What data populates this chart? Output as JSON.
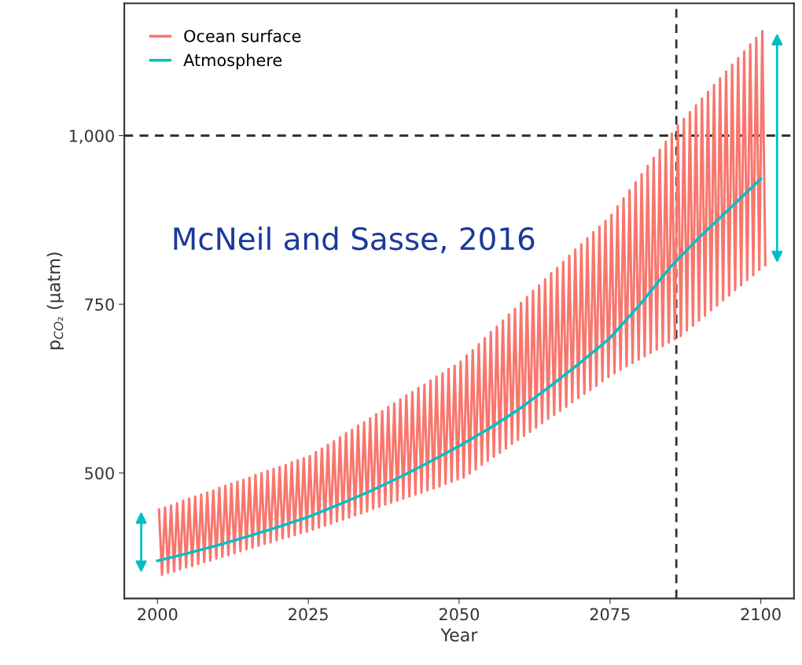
{
  "chart_data": {
    "type": "line",
    "xlabel": "Year",
    "ylabel": "p$_{CO₂}$ (µatm)",
    "xlim": [
      1994.5,
      2105.5
    ],
    "ylim": [
      314,
      1196
    ],
    "xticks": [
      2000,
      2025,
      2050,
      2075,
      2100
    ],
    "yticks": [
      500,
      750,
      {
        "value": 1000,
        "label": "1,000"
      }
    ],
    "grid": false,
    "legend": "top left",
    "line_style": "solid",
    "marker": "none",
    "ref_lines": [
      {
        "axis": "y",
        "value": 1000,
        "label": null,
        "color": "#333333",
        "line_style": "dashed"
      },
      {
        "axis": "x",
        "value": 2086,
        "label": null,
        "color": "#333333",
        "line_style": "dashed"
      }
    ],
    "annotations": [
      "McNeil and Sasse, 2016"
    ],
    "series": [
      {
        "name": "Ocean surface",
        "color": "#f8766d",
        "x": [
          2000.25,
          2000.75,
          2001.25,
          2001.75,
          2002.25,
          2002.75,
          2003.25,
          2003.75,
          2004.25,
          2004.75,
          2005.25,
          2005.75,
          2006.25,
          2006.75,
          2007.25,
          2007.75,
          2008.25,
          2008.75,
          2009.25,
          2009.75,
          2010.25,
          2010.75,
          2011.25,
          2011.75,
          2012.25,
          2012.75,
          2013.25,
          2013.75,
          2014.25,
          2014.75,
          2015.25,
          2015.75,
          2016.25,
          2016.75,
          2017.25,
          2017.75,
          2018.25,
          2018.75,
          2019.25,
          2019.75,
          2020.25,
          2020.75,
          2021.25,
          2021.75,
          2022.25,
          2022.75,
          2023.25,
          2023.75,
          2024.25,
          2024.75,
          2025.25,
          2025.75,
          2026.25,
          2026.75,
          2027.25,
          2027.75,
          2028.25,
          2028.75,
          2029.25,
          2029.75,
          2030.25,
          2030.75,
          2031.25,
          2031.75,
          2032.25,
          2032.75,
          2033.25,
          2033.75,
          2034.25,
          2034.75,
          2035.25,
          2035.75,
          2036.25,
          2036.75,
          2037.25,
          2037.75,
          2038.25,
          2038.75,
          2039.25,
          2039.75,
          2040.25,
          2040.75,
          2041.25,
          2041.75,
          2042.25,
          2042.75,
          2043.25,
          2043.75,
          2044.25,
          2044.75,
          2045.25,
          2045.75,
          2046.25,
          2046.75,
          2047.25,
          2047.75,
          2048.25,
          2048.75,
          2049.25,
          2049.75,
          2050.25,
          2050.75,
          2051.25,
          2051.75,
          2052.25,
          2052.75,
          2053.25,
          2053.75,
          2054.25,
          2054.75,
          2055.25,
          2055.75,
          2056.25,
          2056.75,
          2057.25,
          2057.75,
          2058.25,
          2058.75,
          2059.25,
          2059.75,
          2060.25,
          2060.75,
          2061.25,
          2061.75,
          2062.25,
          2062.75,
          2063.25,
          2063.75,
          2064.25,
          2064.75,
          2065.25,
          2065.75,
          2066.25,
          2066.75,
          2067.25,
          2067.75,
          2068.25,
          2068.75,
          2069.25,
          2069.75,
          2070.25,
          2070.75,
          2071.25,
          2071.75,
          2072.25,
          2072.75,
          2073.25,
          2073.75,
          2074.25,
          2074.75,
          2075.25,
          2075.75,
          2076.25,
          2076.75,
          2077.25,
          2077.75,
          2078.25,
          2078.75,
          2079.25,
          2079.75,
          2080.25,
          2080.75,
          2081.25,
          2081.75,
          2082.25,
          2082.75,
          2083.25,
          2083.75,
          2084.25,
          2084.75,
          2085.25,
          2085.75,
          2086.25,
          2086.75,
          2087.25,
          2087.75,
          2088.25,
          2088.75,
          2089.25,
          2089.75,
          2090.25,
          2090.75,
          2091.25,
          2091.75,
          2092.25,
          2092.75,
          2093.25,
          2093.75,
          2094.25,
          2094.75,
          2095.25,
          2095.75,
          2096.25,
          2096.75,
          2097.25,
          2097.75,
          2098.25,
          2098.75,
          2099.25,
          2099.75,
          2100.25,
          2100.75
        ],
        "values": [
          446,
          349,
          449,
          352,
          452,
          354,
          455,
          357,
          459,
          360,
          462,
          362,
          465,
          365,
          468,
          368,
          471,
          370,
          474,
          373,
          478,
          376,
          481,
          378,
          484,
          381,
          487,
          384,
          490,
          387,
          493,
          389,
          497,
          392,
          500,
          395,
          503,
          397,
          506,
          400,
          509,
          403,
          512,
          405,
          516,
          408,
          519,
          411,
          522,
          413,
          525,
          416,
          531,
          419,
          536,
          422,
          542,
          425,
          547,
          428,
          553,
          431,
          559,
          434,
          564,
          437,
          570,
          440,
          575,
          443,
          581,
          447,
          587,
          450,
          592,
          453,
          598,
          456,
          603,
          459,
          609,
          462,
          615,
          465,
          620,
          468,
          626,
          471,
          631,
          474,
          637,
          477,
          643,
          480,
          648,
          484,
          654,
          487,
          659,
          490,
          665,
          493,
          674,
          499,
          682,
          505,
          691,
          512,
          700,
          518,
          709,
          524,
          717,
          530,
          726,
          536,
          735,
          543,
          743,
          549,
          752,
          555,
          761,
          561,
          770,
          567,
          778,
          574,
          787,
          580,
          796,
          586,
          804,
          592,
          813,
          598,
          822,
          605,
          831,
          611,
          839,
          617,
          848,
          623,
          857,
          629,
          865,
          636,
          874,
          642,
          883,
          648,
          895,
          653,
          907,
          658,
          919,
          663,
          931,
          668,
          943,
          673,
          955,
          678,
          967,
          683,
          979,
          688,
          991,
          693,
          1003,
          698,
          1015,
          703,
          1025,
          711,
          1035,
          718,
          1045,
          726,
          1055,
          733,
          1065,
          741,
          1075,
          748,
          1085,
          756,
          1095,
          763,
          1105,
          771,
          1115,
          778,
          1125,
          786,
          1135,
          793,
          1145,
          801,
          1155,
          808
        ]
      },
      {
        "name": "Atmosphere",
        "color": "#00bfc4",
        "x": [
          2000,
          2005,
          2010,
          2015,
          2020,
          2025,
          2030,
          2035,
          2040,
          2045,
          2050,
          2055,
          2060,
          2065,
          2070,
          2075,
          2080,
          2085,
          2090,
          2095,
          2100
        ],
        "values": [
          370,
          381,
          393,
          406,
          420,
          435,
          453,
          472,
          493,
          516,
          540,
          566,
          595,
          628,
          663,
          700,
          750,
          805,
          851,
          893,
          936
        ]
      }
    ]
  }
}
